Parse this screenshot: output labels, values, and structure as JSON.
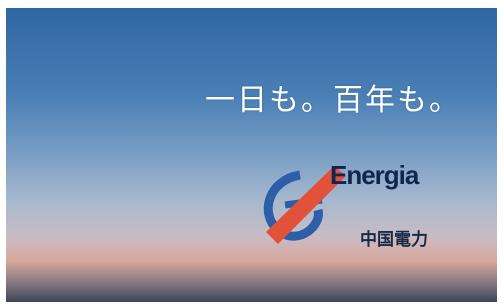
{
  "tagline": "一日も。百年も。",
  "logo": {
    "brand": "Energia",
    "company": "中国電力"
  }
}
